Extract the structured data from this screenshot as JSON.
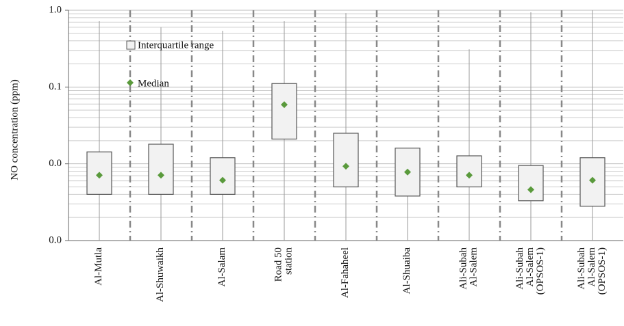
{
  "chart_data": {
    "type": "box",
    "y_label": "NO concentration (ppm)",
    "categories": [
      "Al-Mutla",
      "Al-Shuwaikh",
      "Al-Salam",
      "Road 50 station",
      "Al-Fahaheel",
      "Al-Shuaiba",
      "Ali-Subah Al-Salem",
      "Ali-Subah Al-Salem (OPSOS-1)",
      "Ali-Subah Al-Salem (OPSOS-1)"
    ],
    "boxes": [
      {
        "min": 0.001,
        "q1": 0.004,
        "median": 0.0071,
        "q3": 0.0143,
        "max": 0.72
      },
      {
        "min": 0.001,
        "q1": 0.004,
        "median": 0.0071,
        "q3": 0.018,
        "max": 0.6
      },
      {
        "min": 0.001,
        "q1": 0.004,
        "median": 0.0061,
        "q3": 0.012,
        "max": 0.54
      },
      {
        "min": 0.001,
        "q1": 0.021,
        "median": 0.059,
        "q3": 0.111,
        "max": 0.72
      },
      {
        "min": 0.001,
        "q1": 0.005,
        "median": 0.0093,
        "q3": 0.025,
        "max": 0.92
      },
      {
        "min": 0.001,
        "q1": 0.0038,
        "median": 0.0078,
        "q3": 0.016,
        "max": 0.016
      },
      {
        "min": 0.001,
        "q1": 0.005,
        "median": 0.0071,
        "q3": 0.0127,
        "max": 0.31
      },
      {
        "min": 0.001,
        "q1": 0.0033,
        "median": 0.0046,
        "q3": 0.0095,
        "max": 0.94
      },
      {
        "min": 0.001,
        "q1": 0.0028,
        "median": 0.0061,
        "q3": 0.012,
        "max": 1.0
      }
    ],
    "legend": {
      "box": "Interquartile range",
      "median": "Median"
    },
    "box_color": "#f2f2f2",
    "box_edge": "#555555",
    "median_color": "#5a9a3c",
    "whisker_color": "#9a9a9a",
    "log_scale": true,
    "grid": true,
    "ylim": [
      0.001,
      1
    ],
    "yticks": [
      {
        "value": 0.001,
        "label": "0.0"
      },
      {
        "value": 0.01,
        "label": "0.0"
      },
      {
        "value": 0.1,
        "label": "0.1"
      },
      {
        "value": 1,
        "label": "1.0"
      }
    ]
  }
}
